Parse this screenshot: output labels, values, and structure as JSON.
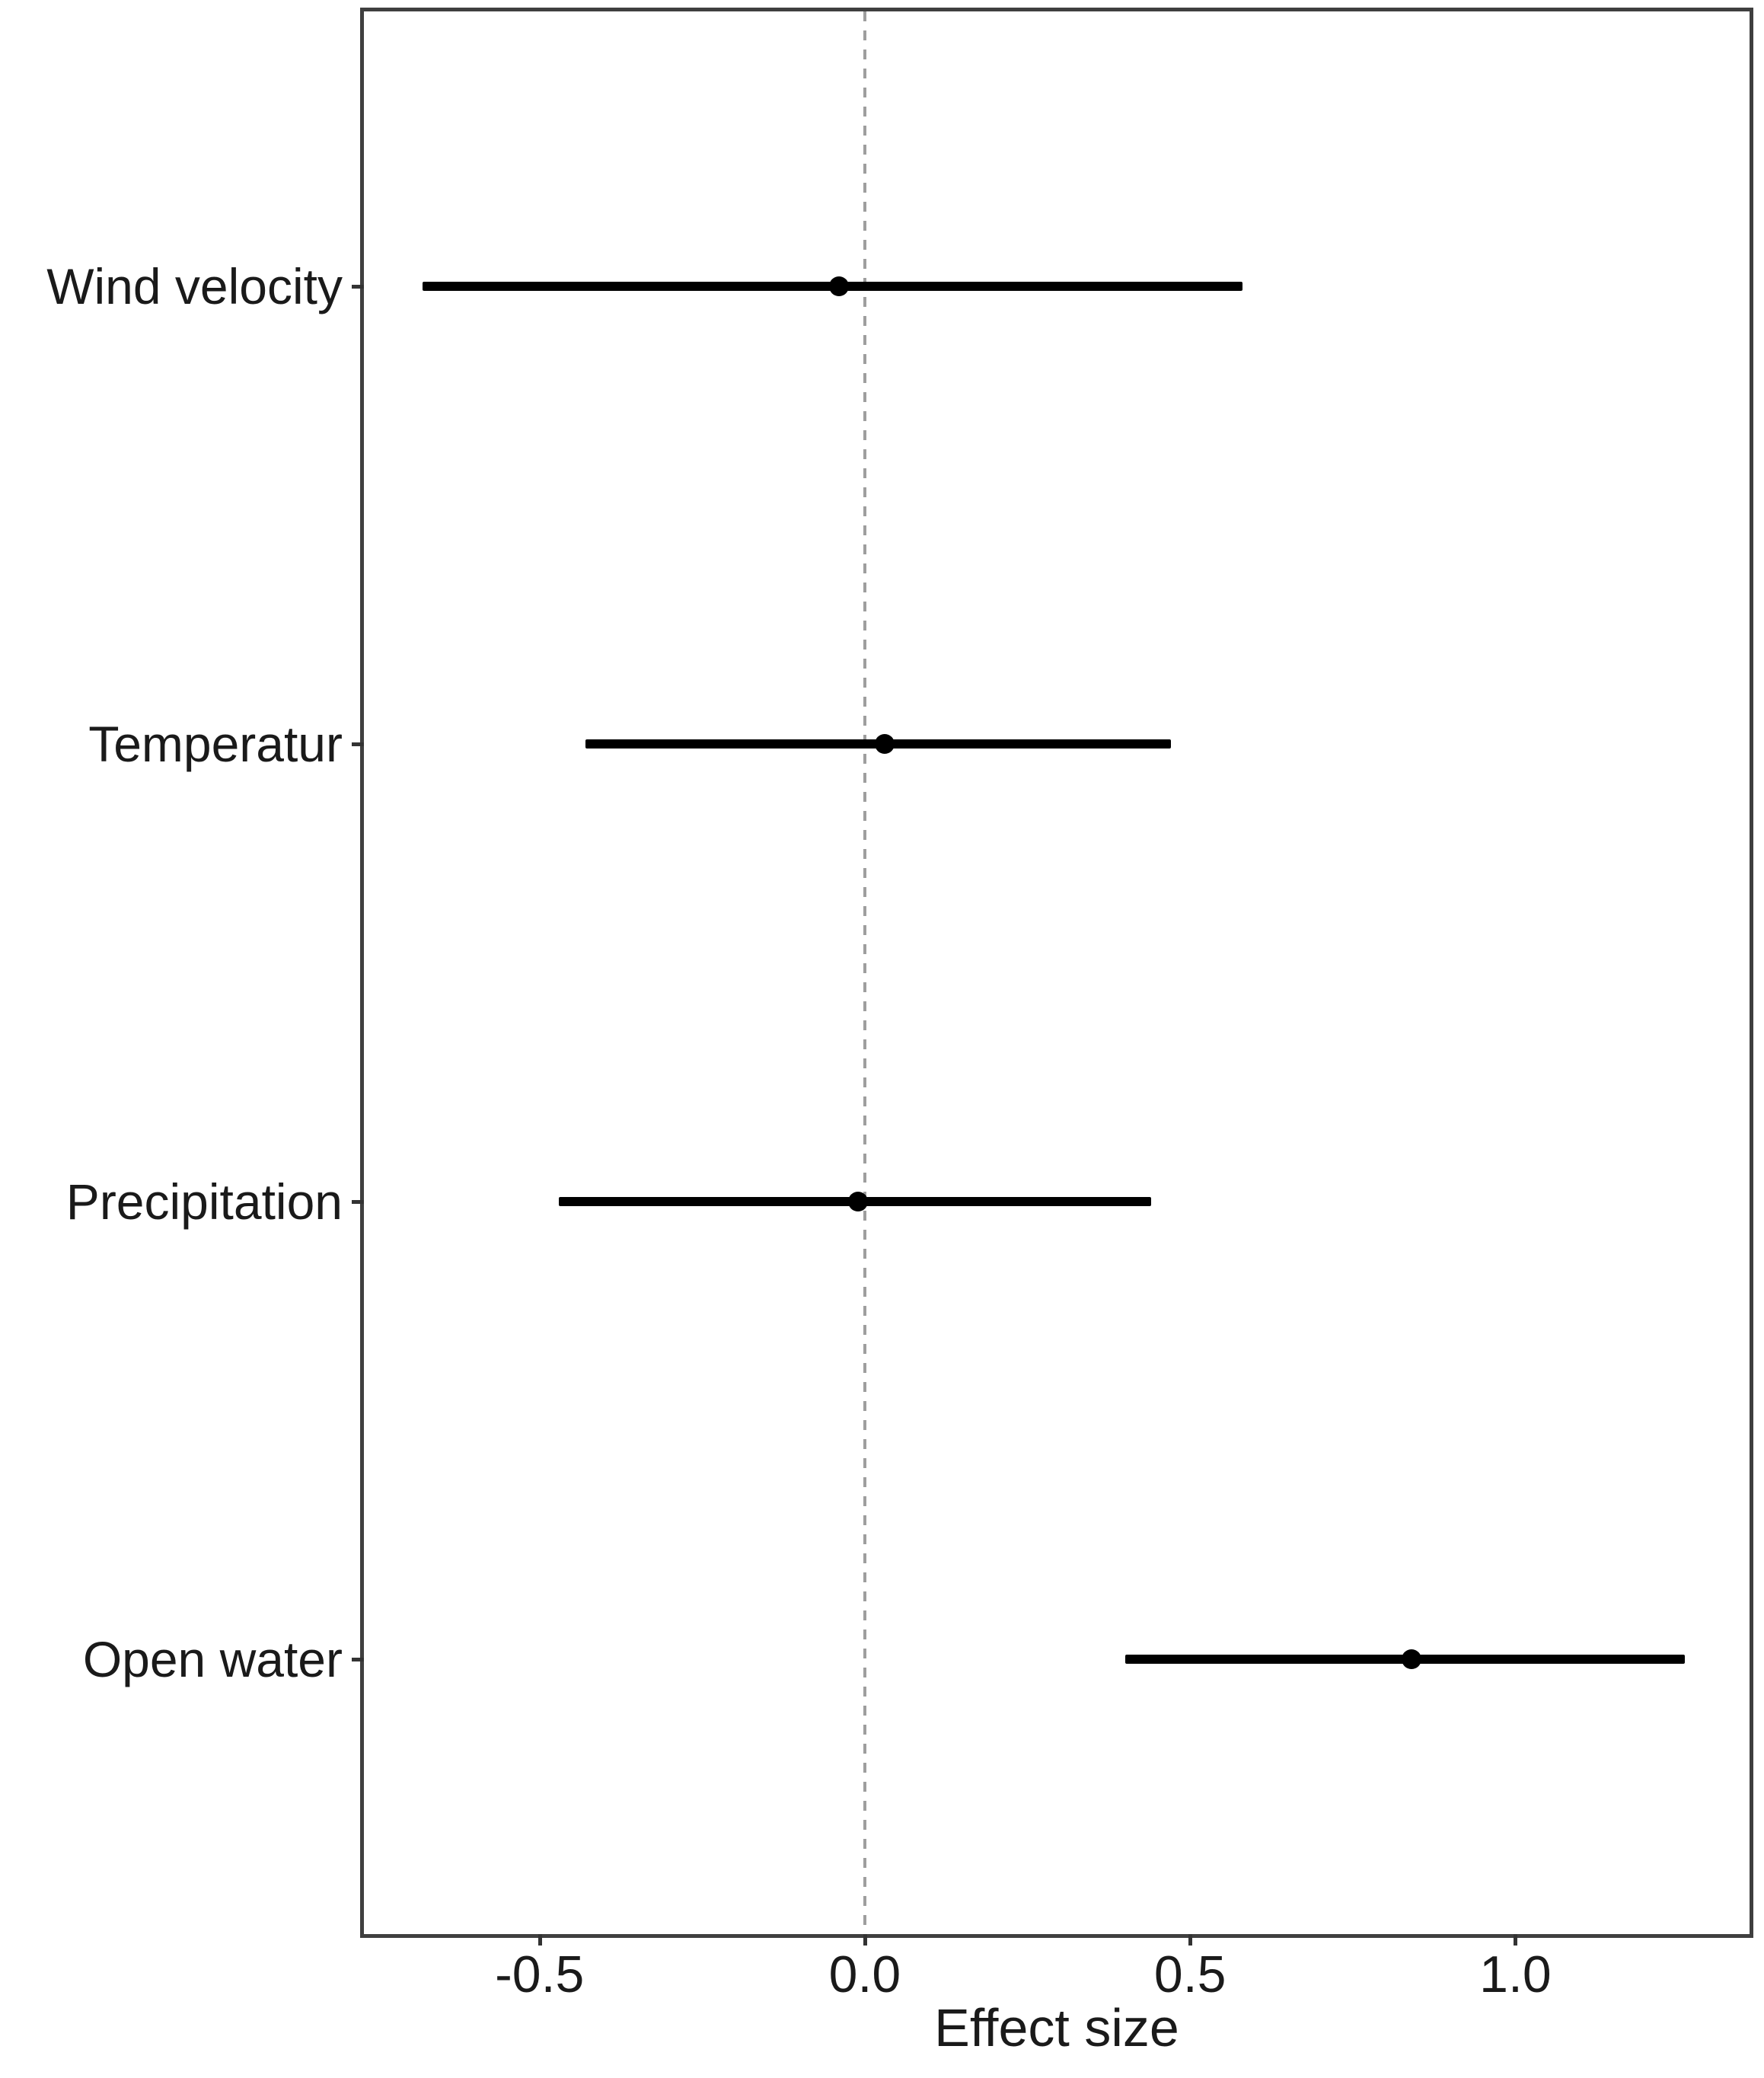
{
  "chart_data": {
    "type": "scatter",
    "subtype": "forest_pointrange",
    "title": "",
    "xlabel": "Effect size",
    "ylabel": "",
    "categories": [
      "Wind velocity",
      "Temperatur",
      "Precipitation",
      "Open water"
    ],
    "series": [
      {
        "name": "effect_size_estimates",
        "points": [
          {
            "category": "Wind velocity",
            "estimate": -0.04,
            "ci_low": -0.68,
            "ci_high": 0.58
          },
          {
            "category": "Temperatur",
            "estimate": 0.03,
            "ci_low": -0.43,
            "ci_high": 0.47
          },
          {
            "category": "Precipitation",
            "estimate": -0.01,
            "ci_low": -0.47,
            "ci_high": 0.44
          },
          {
            "category": "Open water",
            "estimate": 0.84,
            "ci_low": 0.4,
            "ci_high": 1.26
          }
        ]
      }
    ],
    "x_ticks": [
      {
        "value": -0.5,
        "label": "-0.5"
      },
      {
        "value": 0.0,
        "label": "0.0"
      },
      {
        "value": 0.5,
        "label": "0.5"
      },
      {
        "value": 1.0,
        "label": "1.0"
      }
    ],
    "xlim": [
      -0.77,
      1.36
    ],
    "reference_line": {
      "x": 0.0,
      "style": "dashed"
    },
    "grid": false,
    "legend_position": "none",
    "layout_hint": "horizontal point-range (forest) plot, categories on y axis, panel border box, dashed vertical reference at x=0",
    "colors": {
      "point": "#000000",
      "interval_line": "#000000",
      "reference_line": "#9e9e9e",
      "panel_border": "#3f3f3f",
      "tick": "#333333",
      "text": "#1a1a1a",
      "background": "#ffffff"
    }
  }
}
